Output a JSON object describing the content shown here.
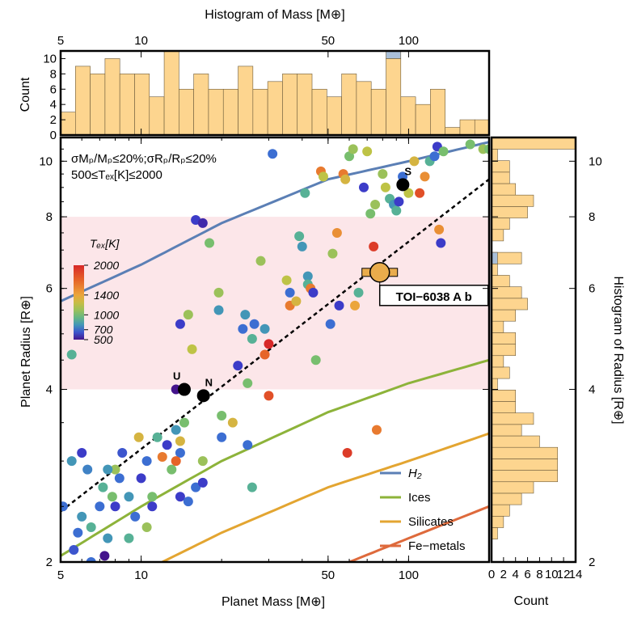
{
  "chart_data": {
    "type": "scatter",
    "xlabel": "Planet Mass [M⊕]",
    "ylabel": "Planet Radius [R⊕]",
    "xscale": "log",
    "yscale": "log",
    "xlim": [
      5,
      200
    ],
    "ylim": [
      2,
      11
    ],
    "x_ticks": [
      5,
      10,
      50,
      100
    ],
    "y_ticks": [
      2,
      4,
      6,
      8,
      10
    ],
    "annotations": {
      "criteria_line1": "σMₚ/Mₚ≤20%;σRₚ/Rₚ≤20%",
      "criteria_line2": "500≤Tₑₓ[K]≤2000",
      "highlight_band": [
        4,
        8
      ],
      "target_label": "TOI−6038 A b",
      "target": {
        "mass": 78,
        "radius": 6.4
      },
      "solar_system": [
        {
          "label": "U",
          "mass": 14.5,
          "radius": 4.0
        },
        {
          "label": "N",
          "mass": 17.1,
          "radius": 3.9
        },
        {
          "label": "S",
          "mass": 95.2,
          "radius": 9.1
        }
      ]
    },
    "colorbar": {
      "title": "Tₑₓ[K]",
      "ticks": [
        2000,
        1400,
        1000,
        700,
        500
      ],
      "tick_labels": [
        "2000",
        "1400",
        "1000",
        "700",
        "500"
      ],
      "range": [
        500,
        2000
      ]
    },
    "composition_curves": [
      {
        "name": "H₂",
        "color": "#5b7fb5",
        "points": [
          [
            5,
            5.7
          ],
          [
            10,
            6.6
          ],
          [
            20,
            7.8
          ],
          [
            50,
            9.3
          ],
          [
            100,
            10.0
          ],
          [
            200,
            10.8
          ]
        ]
      },
      {
        "name": "Ices",
        "color": "#8db33a",
        "points": [
          [
            5,
            2.05
          ],
          [
            10,
            2.5
          ],
          [
            20,
            3.0
          ],
          [
            50,
            3.65
          ],
          [
            100,
            4.1
          ],
          [
            200,
            4.5
          ]
        ]
      },
      {
        "name": "Silicates",
        "color": "#e3a531",
        "points": [
          [
            12,
            2.0
          ],
          [
            20,
            2.25
          ],
          [
            50,
            2.7
          ],
          [
            100,
            3.0
          ],
          [
            200,
            3.35
          ]
        ]
      },
      {
        "name": "Fe−metals",
        "color": "#de6a3c",
        "points": [
          [
            60,
            2.0
          ],
          [
            100,
            2.2
          ],
          [
            200,
            2.5
          ]
        ]
      }
    ],
    "reference_line": {
      "style": "dashed",
      "points": [
        [
          5,
          2.45
        ],
        [
          200,
          9.3
        ]
      ]
    },
    "points": [
      [
        5.5,
        4.6,
        900
      ],
      [
        5.5,
        3.0,
        800
      ],
      [
        5.1,
        2.5,
        700
      ],
      [
        6.0,
        3.1,
        600
      ],
      [
        6.3,
        2.9,
        750
      ],
      [
        6.0,
        2.4,
        800
      ],
      [
        5.8,
        2.25,
        700
      ],
      [
        6.5,
        2.3,
        900
      ],
      [
        7.0,
        2.5,
        700
      ],
      [
        7.5,
        2.2,
        800
      ],
      [
        7.2,
        2.7,
        900
      ],
      [
        7.8,
        2.6,
        1000
      ],
      [
        8.0,
        2.5,
        600
      ],
      [
        8.3,
        2.8,
        700
      ],
      [
        8.5,
        3.1,
        650
      ],
      [
        8.0,
        2.9,
        1100
      ],
      [
        9.0,
        2.6,
        800
      ],
      [
        9.5,
        2.4,
        700
      ],
      [
        9.0,
        2.2,
        900
      ],
      [
        10.0,
        2.8,
        600
      ],
      [
        10.5,
        3.0,
        700
      ],
      [
        11.0,
        2.6,
        1000
      ],
      [
        11.5,
        3.3,
        900
      ],
      [
        12.5,
        3.2,
        600
      ],
      [
        13.0,
        2.9,
        1000
      ],
      [
        13.5,
        3.4,
        800
      ],
      [
        14.0,
        3.1,
        700
      ],
      [
        14.0,
        2.6,
        600
      ],
      [
        15.0,
        2.55,
        700
      ],
      [
        14.5,
        3.5,
        1000
      ],
      [
        16.0,
        2.7,
        700
      ],
      [
        17.0,
        2.75,
        600
      ],
      [
        17.0,
        3.0,
        1100
      ],
      [
        12.0,
        3.05,
        1600
      ],
      [
        13.5,
        3.0,
        1700
      ],
      [
        14.0,
        3.25,
        1300
      ],
      [
        10.5,
        2.3,
        1100
      ],
      [
        7.3,
        2.05,
        500
      ],
      [
        6.5,
        2.0,
        700
      ],
      [
        5.6,
        2.1,
        650
      ],
      [
        13.5,
        4.0,
        500
      ],
      [
        14.0,
        5.2,
        600
      ],
      [
        15.0,
        5.4,
        1100
      ],
      [
        15.5,
        4.7,
        1200
      ],
      [
        16.0,
        7.9,
        600
      ],
      [
        17.0,
        7.8,
        550
      ],
      [
        18.0,
        7.2,
        1000
      ],
      [
        19.5,
        5.9,
        1100
      ],
      [
        19.5,
        5.5,
        800
      ],
      [
        20.0,
        3.6,
        1000
      ],
      [
        20.0,
        3.3,
        700
      ],
      [
        22.0,
        3.5,
        1300
      ],
      [
        23.0,
        4.4,
        600
      ],
      [
        24.0,
        5.1,
        700
      ],
      [
        24.5,
        5.4,
        800
      ],
      [
        25.0,
        4.1,
        1000
      ],
      [
        26.0,
        4.9,
        900
      ],
      [
        26.5,
        5.2,
        700
      ],
      [
        25.0,
        3.2,
        700
      ],
      [
        26.0,
        2.7,
        900
      ],
      [
        28.0,
        6.7,
        1100
      ],
      [
        29.0,
        5.1,
        800
      ],
      [
        29.0,
        4.6,
        1700
      ],
      [
        30.0,
        4.8,
        2000
      ],
      [
        30.0,
        3.9,
        1800
      ],
      [
        31.0,
        10.3,
        700
      ],
      [
        35.0,
        6.2,
        1200
      ],
      [
        36.0,
        5.9,
        700
      ],
      [
        36.0,
        5.6,
        1600
      ],
      [
        38.0,
        5.7,
        1300
      ],
      [
        39.0,
        7.4,
        900
      ],
      [
        40.0,
        7.1,
        800
      ],
      [
        41.0,
        8.8,
        900
      ],
      [
        42.0,
        6.3,
        800
      ],
      [
        42.0,
        6.1,
        900
      ],
      [
        43.0,
        6.0,
        1600
      ],
      [
        44.0,
        5.9,
        600
      ],
      [
        45.0,
        4.5,
        1000
      ],
      [
        47.0,
        9.6,
        1600
      ],
      [
        48.0,
        9.4,
        1200
      ],
      [
        51.0,
        5.2,
        700
      ],
      [
        52.0,
        6.9,
        1100
      ],
      [
        54.0,
        7.5,
        1500
      ],
      [
        55.0,
        5.6,
        600
      ],
      [
        57.0,
        9.5,
        1600
      ],
      [
        58.0,
        9.3,
        1300
      ],
      [
        60.0,
        10.2,
        1000
      ],
      [
        62.0,
        10.5,
        1100
      ],
      [
        63.0,
        5.6,
        1400
      ],
      [
        65.0,
        5.9,
        900
      ],
      [
        68.0,
        9.0,
        600
      ],
      [
        70.0,
        10.4,
        1200
      ],
      [
        72.0,
        8.1,
        1000
      ],
      [
        74.0,
        7.1,
        1900
      ],
      [
        75.0,
        8.4,
        1100
      ],
      [
        76.0,
        3.4,
        1600
      ],
      [
        80.0,
        9.5,
        1100
      ],
      [
        82.0,
        9.0,
        1200
      ],
      [
        85.0,
        8.6,
        900
      ],
      [
        88.0,
        8.4,
        800
      ],
      [
        90.0,
        8.2,
        900
      ],
      [
        92.0,
        8.5,
        600
      ],
      [
        95.0,
        9.4,
        700
      ],
      [
        100.0,
        8.8,
        1200
      ],
      [
        105.0,
        10.0,
        1300
      ],
      [
        110.0,
        8.8,
        1800
      ],
      [
        115.0,
        9.4,
        1500
      ],
      [
        120.0,
        10.0,
        900
      ],
      [
        125.0,
        10.2,
        700
      ],
      [
        128.0,
        10.6,
        600
      ],
      [
        130.0,
        7.6,
        1500
      ],
      [
        132.0,
        7.2,
        600
      ],
      [
        135.0,
        10.4,
        1000
      ],
      [
        170.0,
        10.7,
        1000
      ],
      [
        190.0,
        10.5,
        1100
      ],
      [
        200.0,
        10.5,
        1000
      ],
      [
        59.0,
        3.1,
        1900
      ],
      [
        9.8,
        3.3,
        1300
      ],
      [
        7.5,
        2.9,
        800
      ],
      [
        11.0,
        2.5,
        600
      ]
    ],
    "top_histogram": {
      "title": "Histogram of Mass [M⊕]",
      "ylabel": "Count",
      "ylim": [
        0,
        11
      ],
      "y_ticks": [
        0,
        2,
        4,
        6,
        8,
        10
      ],
      "x_ticks": [
        5,
        10,
        50,
        100
      ],
      "counts": [
        3,
        9,
        8,
        10,
        8,
        8,
        5,
        11,
        6,
        8,
        6,
        6,
        9,
        6,
        7,
        8,
        8,
        6,
        5,
        8,
        7,
        6,
        10,
        5,
        4,
        6,
        1,
        2,
        2
      ],
      "highlight_bin": {
        "index": 22,
        "base": 10,
        "top": 11
      },
      "bin_log_start": 0.699,
      "bin_log_width": 0.0553
    },
    "right_histogram": {
      "title": "Histogram of Radius [R⊕]",
      "xlabel": "Count",
      "xlim": [
        0,
        14
      ],
      "x_ticks": [
        0,
        2,
        4,
        6,
        8,
        10,
        12,
        14
      ],
      "counts": [
        0,
        0,
        1,
        2,
        3,
        5,
        7,
        11,
        11,
        11,
        8,
        5,
        7,
        4,
        4,
        1,
        3,
        2,
        4,
        4,
        2,
        4,
        6,
        5,
        3,
        1,
        5,
        0,
        2,
        3,
        6,
        7,
        4,
        3,
        3,
        1,
        14
      ],
      "highlight_bin": {
        "index": 26,
        "base": 0,
        "top": 1
      },
      "bin_log_start": 0.301,
      "bin_log_width": 0.02
    }
  },
  "colors": {
    "hist_fill": "#fdd58f",
    "hist_highlight": "#a9bfd9",
    "band_fill": "#fce6e9",
    "target_fill": "#e9ac4c"
  }
}
